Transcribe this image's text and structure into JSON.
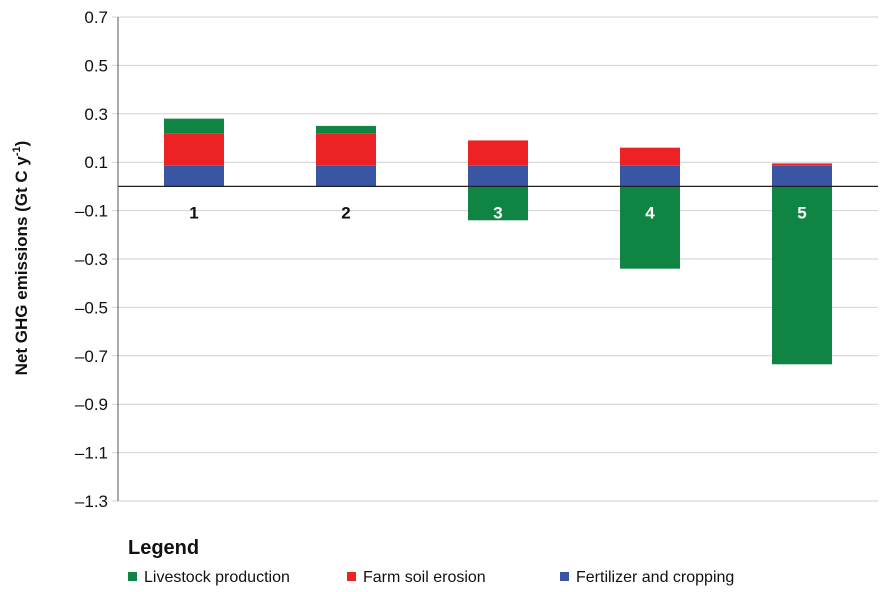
{
  "chart_data": {
    "type": "bar",
    "stacked": true,
    "categories": [
      "1",
      "2",
      "3",
      "4",
      "5"
    ],
    "series": [
      {
        "name": "Fertilizer and cropping",
        "color": "#3a55a4",
        "values": [
          0.085,
          0.085,
          0.085,
          0.085,
          0.085
        ]
      },
      {
        "name": "Farm soil erosion",
        "color": "#ed2224",
        "values": [
          0.135,
          0.135,
          0.105,
          0.075,
          0.01
        ]
      },
      {
        "name": "Livestock production",
        "color": "#108543",
        "values": [
          0.06,
          0.03,
          -0.14,
          -0.34,
          -0.735
        ]
      }
    ],
    "ylabel": "Net GHG emissions (Gt C y",
    "ylabel_sup": "-1",
    "ylabel_end": ")",
    "ylim": [
      -1.3,
      0.7
    ],
    "yticks": [
      "0.7",
      "0.5",
      "0.3",
      "0.1",
      "–0.1",
      "–0.3",
      "–0.5",
      "–0.7",
      "–0.9",
      "–1.1",
      "–1.3"
    ],
    "ytick_values": [
      0.7,
      0.5,
      0.3,
      0.1,
      -0.1,
      -0.3,
      -0.5,
      -0.7,
      -0.9,
      -1.1,
      -1.3
    ],
    "grid": true,
    "legend": {
      "title": "Legend",
      "position": "bottom",
      "order": [
        "Livestock production",
        "Farm soil erosion",
        "Fertilizer and cropping"
      ]
    }
  }
}
